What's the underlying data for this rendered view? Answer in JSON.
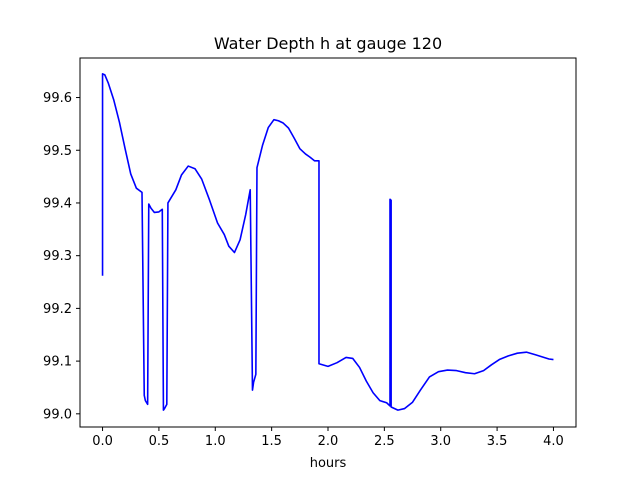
{
  "chart_data": {
    "type": "line",
    "title": "Water Depth h at gauge 120",
    "xlabel": "hours",
    "ylabel": "",
    "xlim": [
      -0.2,
      4.2
    ],
    "ylim": [
      98.975,
      99.675
    ],
    "xticks": [
      0.0,
      0.5,
      1.0,
      1.5,
      2.0,
      2.5,
      3.0,
      3.5,
      4.0
    ],
    "xtick_labels": [
      "0.0",
      "0.5",
      "1.0",
      "1.5",
      "2.0",
      "2.5",
      "3.0",
      "3.5",
      "4.0"
    ],
    "yticks": [
      99.0,
      99.1,
      99.2,
      99.3,
      99.4,
      99.5,
      99.6
    ],
    "ytick_labels": [
      "99.0",
      "99.1",
      "99.2",
      "99.3",
      "99.4",
      "99.5",
      "99.6"
    ],
    "grid": false,
    "legend": "none",
    "series": [
      {
        "color": "#0000ff",
        "x": [
          0.0,
          0.0,
          0.02,
          0.05,
          0.1,
          0.15,
          0.2,
          0.25,
          0.3,
          0.35,
          0.37,
          0.38,
          0.4,
          0.41,
          0.43,
          0.46,
          0.5,
          0.53,
          0.54,
          0.55,
          0.57,
          0.58,
          0.65,
          0.7,
          0.76,
          0.82,
          0.88,
          0.95,
          1.02,
          1.08,
          1.12,
          1.17,
          1.22,
          1.27,
          1.31,
          1.33,
          1.34,
          1.36,
          1.37,
          1.42,
          1.47,
          1.52,
          1.56,
          1.6,
          1.65,
          1.7,
          1.75,
          1.8,
          1.84,
          1.88,
          1.92,
          1.92,
          2.0,
          2.08,
          2.16,
          2.22,
          2.28,
          2.34,
          2.4,
          2.46,
          2.52,
          2.55,
          2.55,
          2.56,
          2.56,
          2.62,
          2.68,
          2.75,
          2.82,
          2.9,
          2.98,
          3.06,
          3.14,
          3.22,
          3.3,
          3.38,
          3.45,
          3.52,
          3.6,
          3.68,
          3.76,
          3.84,
          3.9,
          3.96,
          4.0
        ],
        "y": [
          99.262,
          99.645,
          99.643,
          99.628,
          99.595,
          99.553,
          99.503,
          99.455,
          99.428,
          99.42,
          99.035,
          99.025,
          99.018,
          99.398,
          99.39,
          99.382,
          99.383,
          99.388,
          99.007,
          99.01,
          99.018,
          99.4,
          99.425,
          99.453,
          99.47,
          99.465,
          99.445,
          99.405,
          99.362,
          99.34,
          99.318,
          99.306,
          99.33,
          99.378,
          99.425,
          99.045,
          99.06,
          99.075,
          99.467,
          99.51,
          99.543,
          99.558,
          99.556,
          99.552,
          99.542,
          99.523,
          99.503,
          99.493,
          99.487,
          99.48,
          99.48,
          99.095,
          99.09,
          99.097,
          99.107,
          99.105,
          99.088,
          99.062,
          99.04,
          99.025,
          99.021,
          99.015,
          99.407,
          99.405,
          99.013,
          99.007,
          99.01,
          99.022,
          99.045,
          99.07,
          99.08,
          99.083,
          99.082,
          99.078,
          99.076,
          99.082,
          99.093,
          99.103,
          99.11,
          99.115,
          99.117,
          99.112,
          99.108,
          99.104,
          99.103
        ]
      }
    ]
  }
}
